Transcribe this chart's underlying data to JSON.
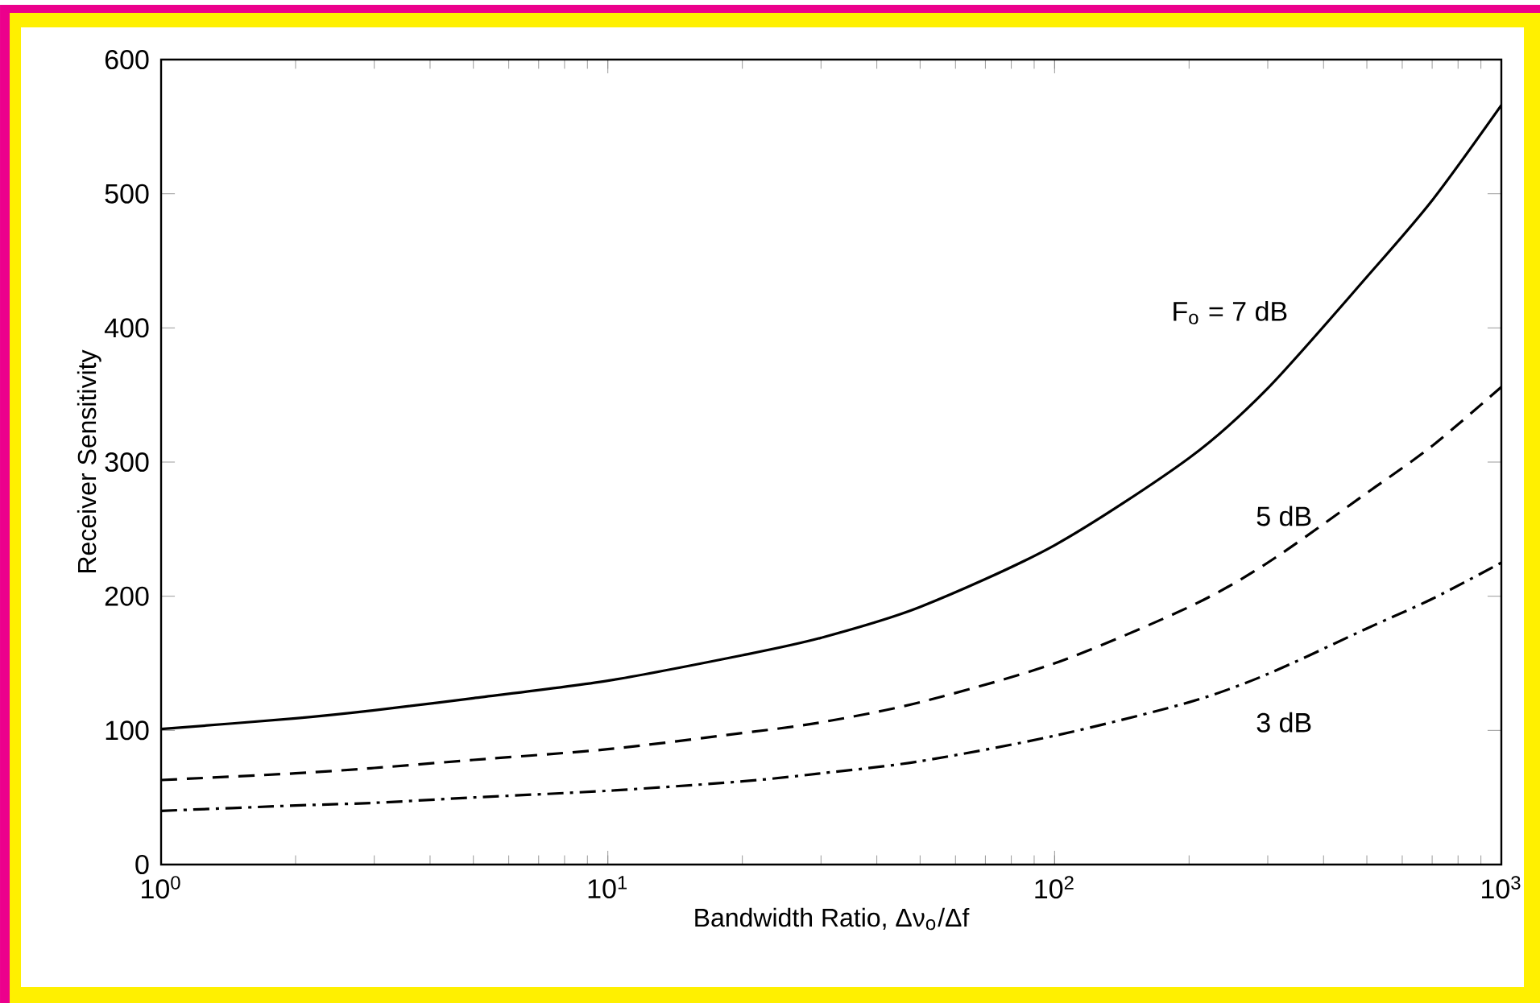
{
  "chart_data": {
    "type": "line",
    "xlabel": "Bandwidth Ratio, Δν$_{o}$/Δf",
    "ylabel": "Receiver Sensitivity",
    "log": "x",
    "xlim": [
      1,
      1000
    ],
    "ylim": [
      0,
      600
    ],
    "xticks": [
      {
        "value": 1,
        "label": "10$^{0}$"
      },
      {
        "value": 10,
        "label": "10$^{1}$"
      },
      {
        "value": 100,
        "label": "10$^{2}$"
      },
      {
        "value": 1000,
        "label": "10$^{3}$"
      }
    ],
    "yticks": [
      0,
      100,
      200,
      300,
      400,
      500,
      600
    ],
    "x": [
      1,
      2,
      3,
      5,
      10,
      20,
      30,
      50,
      100,
      200,
      300,
      500,
      700,
      1000
    ],
    "series": [
      {
        "name": "F$_{o}$ = 7 dB",
        "color": "#000000",
        "line_style": "solid",
        "values": [
          101,
          109,
          115,
          124,
          137,
          156,
          169,
          192,
          238,
          303,
          355,
          438,
          495,
          566
        ]
      },
      {
        "name": "5 dB",
        "color": "#000000",
        "line_style": "dashed",
        "values": [
          63,
          68,
          72,
          78,
          86,
          98,
          106,
          121,
          150,
          192,
          225,
          277,
          312,
          356
        ]
      },
      {
        "name": "3 dB",
        "color": "#000000",
        "line_style": "dashdot",
        "values": [
          40,
          44,
          46,
          50,
          55,
          62,
          68,
          77,
          96,
          121,
          142,
          176,
          198,
          225
        ]
      }
    ]
  }
}
